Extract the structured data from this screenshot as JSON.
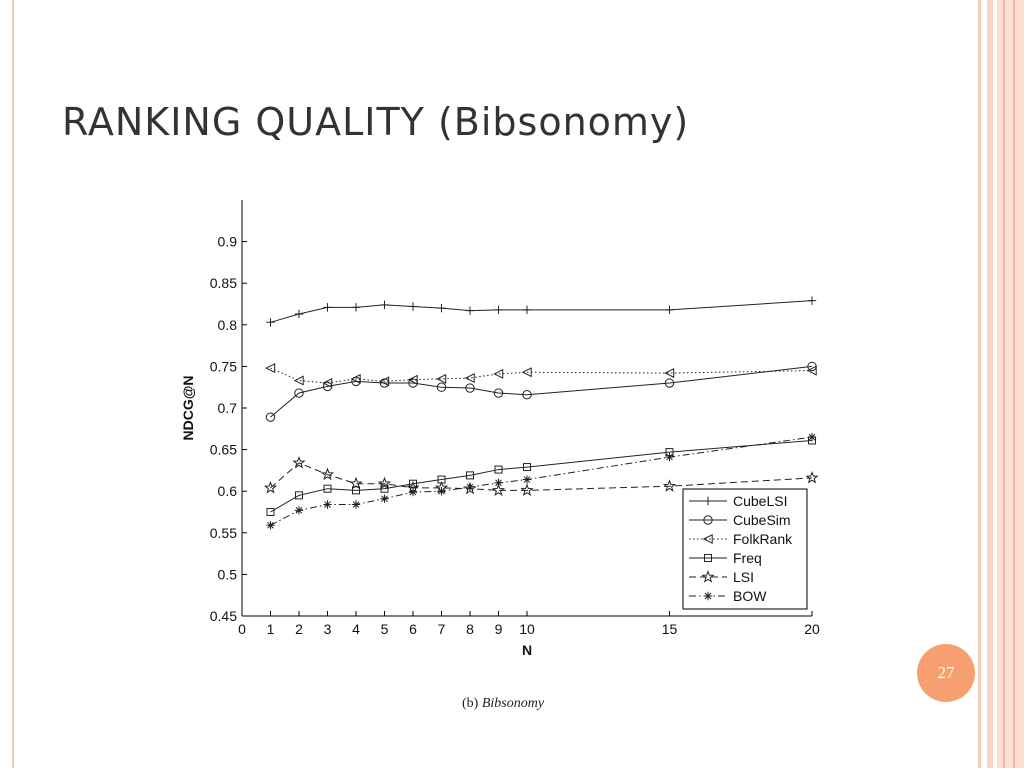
{
  "slide": {
    "title": "RANKING QUALITY (Bibsonomy)",
    "page_number": "27",
    "caption_prefix": "(b)",
    "caption_text": "Bibsonomy",
    "accent_color": "#f6a071"
  },
  "chart_data": {
    "type": "line",
    "title": "",
    "xlabel": "N",
    "ylabel": "NDCG@N",
    "x": [
      1,
      2,
      3,
      4,
      5,
      6,
      7,
      8,
      9,
      10,
      15,
      20
    ],
    "xticks": [
      0,
      1,
      2,
      3,
      4,
      5,
      6,
      7,
      8,
      9,
      10,
      15,
      20
    ],
    "yticks": [
      "0.45",
      "0.5",
      "0.55",
      "0.6",
      "0.65",
      "0.7",
      "0.75",
      "0.8",
      "0.85",
      "0.9"
    ],
    "xlim": [
      0,
      20
    ],
    "ylim": [
      0.45,
      0.95
    ],
    "grid": false,
    "legend_position": "bottom-right",
    "series": [
      {
        "name": "CubeLSI",
        "marker": "plus",
        "dash": "solid",
        "values": [
          0.803,
          0.813,
          0.821,
          0.821,
          0.824,
          0.822,
          0.82,
          0.817,
          0.818,
          0.818,
          0.818,
          0.829
        ]
      },
      {
        "name": "CubeSim",
        "marker": "circle",
        "dash": "solid",
        "values": [
          0.689,
          0.718,
          0.726,
          0.732,
          0.73,
          0.73,
          0.725,
          0.724,
          0.718,
          0.716,
          0.73,
          0.75
        ]
      },
      {
        "name": "FolkRank",
        "marker": "triangle-left",
        "dash": "dotted",
        "values": [
          0.748,
          0.733,
          0.73,
          0.735,
          0.732,
          0.734,
          0.735,
          0.736,
          0.741,
          0.743,
          0.742,
          0.745
        ]
      },
      {
        "name": "Freq",
        "marker": "square",
        "dash": "solid",
        "values": [
          0.575,
          0.595,
          0.603,
          0.601,
          0.603,
          0.609,
          0.614,
          0.619,
          0.626,
          0.629,
          0.647,
          0.661
        ]
      },
      {
        "name": "LSI",
        "marker": "star",
        "dash": "dashed",
        "values": [
          0.604,
          0.634,
          0.62,
          0.609,
          0.609,
          0.604,
          0.604,
          0.603,
          0.601,
          0.601,
          0.606,
          0.616
        ]
      },
      {
        "name": "BOW",
        "marker": "asterisk",
        "dash": "dashdot",
        "values": [
          0.559,
          0.577,
          0.584,
          0.584,
          0.591,
          0.599,
          0.6,
          0.605,
          0.61,
          0.614,
          0.641,
          0.665
        ]
      }
    ]
  }
}
